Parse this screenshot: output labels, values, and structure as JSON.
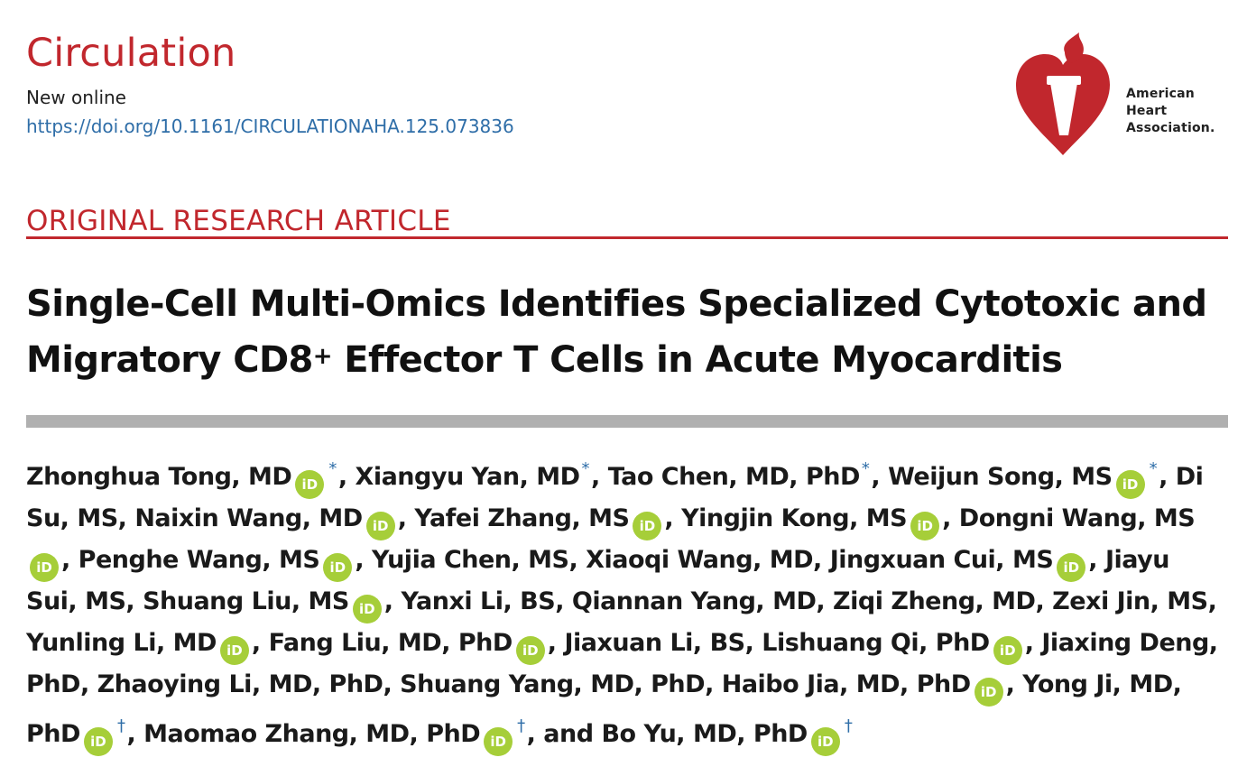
{
  "journal": {
    "name": "Circulation",
    "status": "New online",
    "doi": "https://doi.org/10.1161/CIRCULATIONAHA.125.073836"
  },
  "publisher_logo": {
    "text_lines": [
      "American",
      "Heart",
      "Association."
    ],
    "colors": {
      "heart": "#c1272d",
      "torch": "#ffffff"
    }
  },
  "article": {
    "type": "ORIGINAL RESEARCH ARTICLE",
    "title_part1": "Single-Cell Multi-Omics Identifies Specialized Cytotoxic and Migratory CD8",
    "title_sup": "+",
    "title_part2": " Effector T Cells in Acute Myocarditis"
  },
  "authors": [
    {
      "name": "Zhonghua Tong, MD",
      "orcid": true,
      "mark": "*"
    },
    {
      "name": "Xiangyu Yan, MD",
      "orcid": false,
      "mark": "*"
    },
    {
      "name": "Tao Chen, MD, PhD",
      "orcid": false,
      "mark": "*"
    },
    {
      "name": "Weijun Song, MS",
      "orcid": true,
      "mark": "*"
    },
    {
      "name": "Di Su, MS",
      "orcid": false,
      "mark": ""
    },
    {
      "name": "Naixin Wang, MD",
      "orcid": true,
      "mark": ""
    },
    {
      "name": "Yafei Zhang, MS",
      "orcid": true,
      "mark": ""
    },
    {
      "name": "Yingjin Kong, MS",
      "orcid": true,
      "mark": ""
    },
    {
      "name": "Dongni Wang, MS",
      "orcid": true,
      "mark": ""
    },
    {
      "name": "Penghe Wang, MS",
      "orcid": true,
      "mark": ""
    },
    {
      "name": "Yujia Chen, MS",
      "orcid": false,
      "mark": ""
    },
    {
      "name": "Xiaoqi Wang, MD",
      "orcid": false,
      "mark": ""
    },
    {
      "name": "Jingxuan Cui, MS",
      "orcid": true,
      "mark": ""
    },
    {
      "name": "Jiayu Sui, MS",
      "orcid": false,
      "mark": ""
    },
    {
      "name": "Shuang Liu, MS",
      "orcid": true,
      "mark": ""
    },
    {
      "name": "Yanxi Li, BS",
      "orcid": false,
      "mark": ""
    },
    {
      "name": "Qiannan Yang, MD",
      "orcid": false,
      "mark": ""
    },
    {
      "name": "Ziqi Zheng, MD",
      "orcid": false,
      "mark": ""
    },
    {
      "name": "Zexi Jin, MS",
      "orcid": false,
      "mark": ""
    },
    {
      "name": "Yunling Li, MD",
      "orcid": true,
      "mark": ""
    },
    {
      "name": "Fang Liu, MD, PhD",
      "orcid": true,
      "mark": ""
    },
    {
      "name": "Jiaxuan Li, BS",
      "orcid": false,
      "mark": ""
    },
    {
      "name": "Lishuang Qi, PhD",
      "orcid": true,
      "mark": ""
    },
    {
      "name": "Jiaxing Deng, PhD",
      "orcid": false,
      "mark": ""
    },
    {
      "name": "Zhaoying Li, MD, PhD",
      "orcid": false,
      "mark": ""
    },
    {
      "name": "Shuang Yang, MD, PhD",
      "orcid": false,
      "mark": ""
    },
    {
      "name": "Haibo Jia, MD, PhD",
      "orcid": true,
      "mark": ""
    },
    {
      "name": "Yong Ji, MD, PhD",
      "orcid": true,
      "mark": "†"
    },
    {
      "name": "Maomao Zhang, MD, PhD",
      "orcid": true,
      "mark": "†"
    },
    {
      "name": "Bo Yu, MD, PhD",
      "orcid": true,
      "mark": "†"
    }
  ],
  "author_separator": ", ",
  "author_last_separator": ", and ",
  "orcid_icon_label": "iD",
  "colors": {
    "brand_red": "#c1272d",
    "link_blue": "#2f6ea8",
    "orcid_green": "#a6ce39",
    "divider_gray": "#b0b0b0"
  }
}
